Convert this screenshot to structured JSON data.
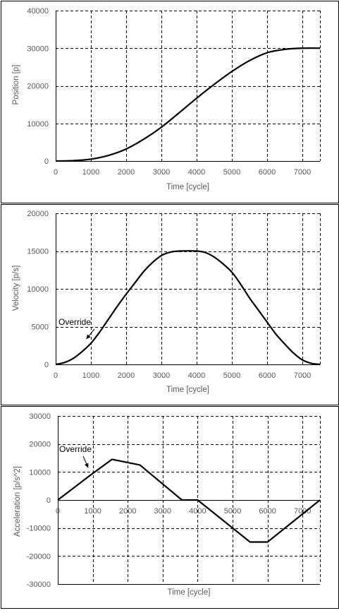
{
  "colors": {
    "curve": "#000000",
    "frame": "#000000",
    "grid": "#000000",
    "text": "#595959",
    "annotation": "#000000"
  },
  "chart_data": [
    {
      "type": "line",
      "title": "",
      "xlabel": "Time [cycle]",
      "ylabel": "Position [p]",
      "xlim": [
        0,
        7500
      ],
      "ylim": [
        0,
        40000
      ],
      "xticks": [
        0,
        1000,
        2000,
        3000,
        4000,
        5000,
        6000,
        7000
      ],
      "yticks": [
        0,
        10000,
        20000,
        30000,
        40000
      ],
      "grid": true,
      "legend": "none",
      "series": [
        {
          "x": [
            0,
            500,
            1000,
            1500,
            2000,
            2500,
            3000,
            3500,
            4000,
            4500,
            5000,
            5500,
            6000,
            6500,
            7000,
            7500
          ],
          "values": [
            0,
            100,
            500,
            1500,
            3200,
            5800,
            9000,
            12800,
            16700,
            20400,
            23800,
            26700,
            28800,
            29700,
            30000,
            30000
          ]
        }
      ]
    },
    {
      "type": "line",
      "title": "",
      "xlabel": "Time [cycle]",
      "ylabel": "Velocity [p/s]",
      "xlim": [
        0,
        7500
      ],
      "ylim": [
        0,
        20000
      ],
      "xticks": [
        0,
        1000,
        2000,
        3000,
        4000,
        5000,
        6000,
        7000
      ],
      "yticks": [
        0,
        5000,
        10000,
        15000,
        20000
      ],
      "grid": true,
      "legend": "none",
      "annotation": {
        "text": "Override",
        "x": 950,
        "y": 2800
      },
      "series": [
        {
          "x": [
            0,
            250,
            500,
            750,
            1000,
            1250,
            1500,
            1750,
            2000,
            2250,
            2500,
            2750,
            3000,
            3250,
            3500,
            4000,
            4250,
            4500,
            4750,
            5000,
            5250,
            5500,
            5750,
            6000,
            6250,
            6500,
            6750,
            7000,
            7250,
            7500
          ],
          "values": [
            0,
            250,
            800,
            1700,
            2800,
            4300,
            6000,
            7700,
            9300,
            10800,
            12300,
            13500,
            14400,
            14850,
            15000,
            15000,
            14800,
            14200,
            13300,
            12200,
            10600,
            8800,
            7200,
            5600,
            4000,
            2700,
            1500,
            600,
            150,
            0
          ]
        }
      ]
    },
    {
      "type": "line",
      "title": "",
      "xlabel": "Time [cycle]",
      "ylabel": "Acceleration [p/s^2]",
      "xlim": [
        0,
        7500
      ],
      "ylim": [
        -30000,
        30000
      ],
      "xticks": [
        0,
        1000,
        2000,
        3000,
        4000,
        5000,
        6000,
        7000
      ],
      "yticks": [
        -30000,
        -20000,
        -10000,
        0,
        10000,
        20000,
        30000
      ],
      "grid": true,
      "legend": "none",
      "annotation": {
        "text": "Override",
        "x": 950,
        "y": 10000
      },
      "series": [
        {
          "x": [
            0,
            1000,
            1550,
            2350,
            3550,
            4000,
            5500,
            6000,
            7500
          ],
          "values": [
            0,
            9500,
            14500,
            12500,
            0,
            0,
            -15000,
            -15000,
            0
          ]
        }
      ]
    }
  ]
}
